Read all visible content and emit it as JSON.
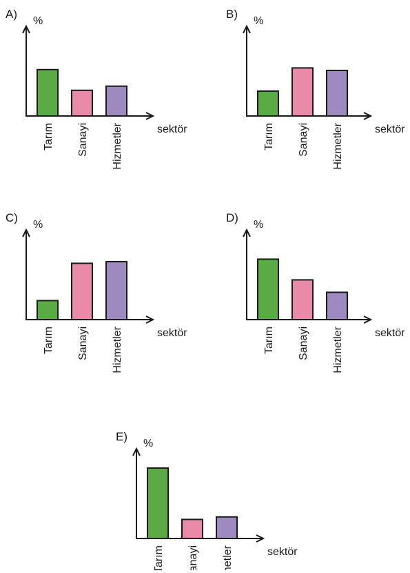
{
  "colors": {
    "green": "#5aaa46",
    "pink": "#e98aa8",
    "purple": "#9d8bbf",
    "axis": "#1a1a1a"
  },
  "chart_data": [
    {
      "type": "bar",
      "letter": "A)",
      "ylabel": "%",
      "xlabel": "sektör",
      "ylim": [
        0,
        100
      ],
      "categories": [
        "Tarım",
        "Sanayi",
        "Hizmetler"
      ],
      "values": [
        56,
        31,
        36
      ],
      "colors": [
        "green",
        "pink",
        "purple"
      ]
    },
    {
      "type": "bar",
      "letter": "B)",
      "ylabel": "%",
      "xlabel": "sektör",
      "ylim": [
        0,
        100
      ],
      "categories": [
        "Tarım",
        "Sanayi",
        "Hizmetler"
      ],
      "values": [
        30,
        58,
        55
      ],
      "colors": [
        "green",
        "pink",
        "purple"
      ]
    },
    {
      "type": "bar",
      "letter": "C)",
      "ylabel": "%",
      "xlabel": "sektör",
      "ylim": [
        0,
        100
      ],
      "categories": [
        "Tarım",
        "Sanayi",
        "Hizmetler"
      ],
      "values": [
        23,
        68,
        70
      ],
      "colors": [
        "green",
        "pink",
        "purple"
      ]
    },
    {
      "type": "bar",
      "letter": "D)",
      "ylabel": "%",
      "xlabel": "sektör",
      "ylim": [
        0,
        100
      ],
      "categories": [
        "Tarım",
        "Sanayi",
        "Hizmetler"
      ],
      "values": [
        73,
        48,
        33
      ],
      "colors": [
        "green",
        "pink",
        "purple"
      ]
    },
    {
      "type": "bar",
      "letter": "E)",
      "ylabel": "%",
      "xlabel": "sektör",
      "ylim": [
        0,
        100
      ],
      "categories": [
        "Tarım",
        "Sanayi",
        "Hizmetler"
      ],
      "values": [
        85,
        23,
        26
      ],
      "colors": [
        "green",
        "pink",
        "purple"
      ]
    }
  ]
}
